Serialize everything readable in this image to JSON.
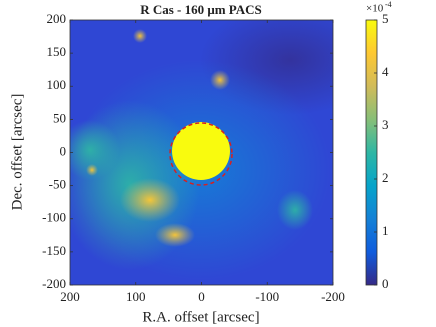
{
  "chart_data": {
    "type": "heatmap",
    "title": "R Cas - 160 μm PACS",
    "x_label": "R.A. offset [arcsec]",
    "y_label": "Dec. offset [arcsec]",
    "xlim": [
      200,
      -200
    ],
    "xticks": [
      200,
      100,
      0,
      -100,
      -200
    ],
    "ylim": [
      -200,
      200
    ],
    "yticks": [
      -200,
      -150,
      -100,
      -50,
      0,
      50,
      100,
      150,
      200
    ],
    "clim": [
      0,
      5
    ],
    "cticks": [
      0,
      1,
      2,
      3,
      4,
      5
    ],
    "colorbar_multiplier": "×10",
    "colorbar_exponent": "-4",
    "colormap": [
      "#352a87",
      "#0f5cdd",
      "#1481d6",
      "#06a4ca",
      "#2eb7a4",
      "#87bf77",
      "#d1bb59",
      "#fec832",
      "#f9fb0e"
    ]
  }
}
